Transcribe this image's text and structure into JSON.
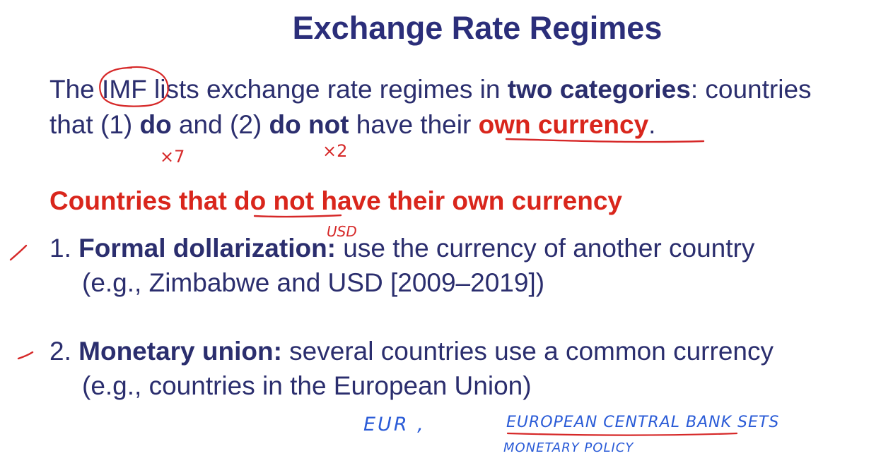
{
  "slide": {
    "title": "Exchange Rate Regimes",
    "intro": {
      "line1": {
        "t1": "The ",
        "imf": "IMF",
        "t2": " lists exchange rate regimes in ",
        "bold": "two categories",
        "t3": ": countries"
      },
      "line2": {
        "t1": "that (1) ",
        "do": "do",
        "t2": " and (2) ",
        "do_not": "do not",
        "t3": " have their ",
        "own_currency": "own currency",
        "t4": "."
      }
    },
    "heading": "Countries that do not have their own currency",
    "items": [
      {
        "number": "1.",
        "term": "Formal dollarization:",
        "desc": " use the currency of another country",
        "example": "(e.g., Zimbabwe and USD [2009–2019])"
      },
      {
        "number": "2.",
        "term": "Monetary union:",
        "desc": " several countries use a common currency",
        "example": "(e.g., countries in the European Union)"
      }
    ]
  },
  "annotations": {
    "x7": "×7",
    "x2": "×2",
    "usd": "USD",
    "eur": "EUR ,",
    "ecb": "EUROPEAN CENTRAL BANK SETS",
    "policy": "MONETARY POLICY",
    "ink_red": "#d62828",
    "ink_blue": "#2a5bd7"
  }
}
